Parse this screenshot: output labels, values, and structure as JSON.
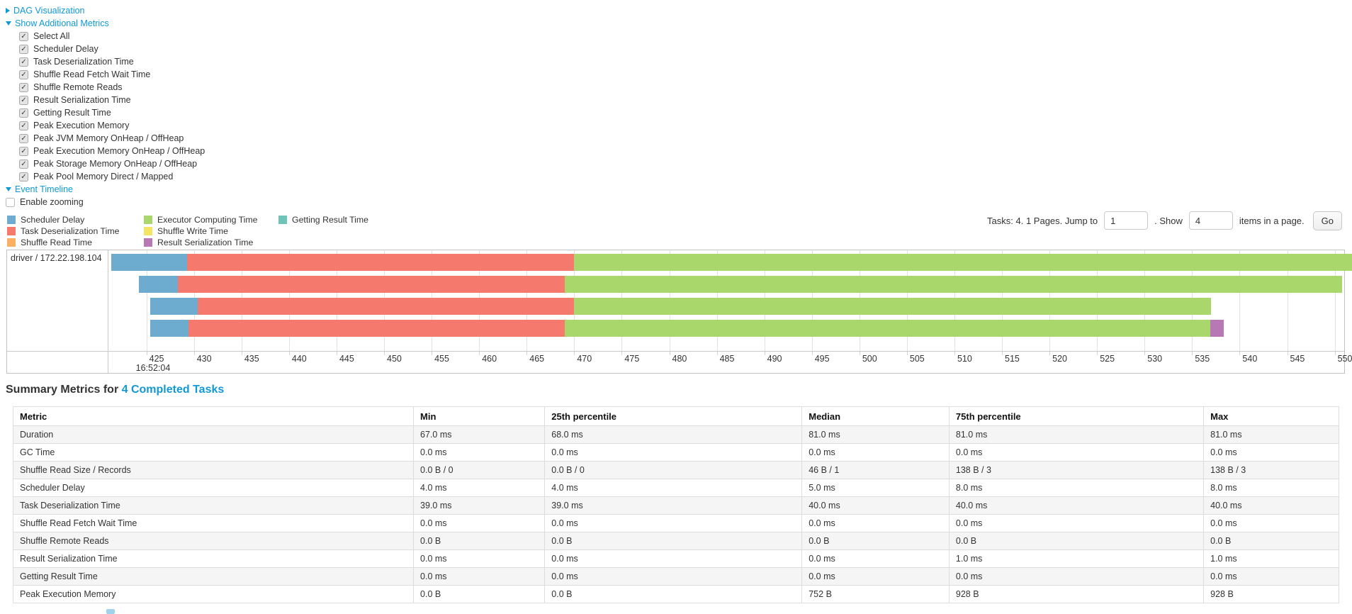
{
  "colors": {
    "link": "#1099D5",
    "scheduler_delay": "#6EACCF",
    "task_deserialization": "#F5796D",
    "shuffle_read": "#FAAF62",
    "executor_computing": "#A9D76B",
    "shuffle_write": "#F4E663",
    "result_serialization": "#B878B6",
    "getting_result": "#6EC4B7"
  },
  "toggles": {
    "dag": "DAG Visualization",
    "additional_metrics": "Show Additional Metrics",
    "event_timeline": "Event Timeline"
  },
  "additional_metrics": {
    "items": [
      "Select All",
      "Scheduler Delay",
      "Task Deserialization Time",
      "Shuffle Read Fetch Wait Time",
      "Shuffle Remote Reads",
      "Result Serialization Time",
      "Getting Result Time",
      "Peak Execution Memory",
      "Peak JVM Memory OnHeap / OffHeap",
      "Peak Execution Memory OnHeap / OffHeap",
      "Peak Storage Memory OnHeap / OffHeap",
      "Peak Pool Memory Direct / Mapped"
    ]
  },
  "enable_zooming_label": "Enable zooming",
  "legend": {
    "columns": [
      [
        {
          "label": "Scheduler Delay",
          "color_key": "scheduler_delay"
        },
        {
          "label": "Task Deserialization Time",
          "color_key": "task_deserialization"
        },
        {
          "label": "Shuffle Read Time",
          "color_key": "shuffle_read"
        }
      ],
      [
        {
          "label": "Executor Computing Time",
          "color_key": "executor_computing"
        },
        {
          "label": "Shuffle Write Time",
          "color_key": "shuffle_write"
        },
        {
          "label": "Result Serialization Time",
          "color_key": "result_serialization"
        }
      ],
      [
        {
          "label": "Getting Result Time",
          "color_key": "getting_result"
        }
      ]
    ]
  },
  "pagination": {
    "tasks_text": "Tasks: 4. 1 Pages. Jump to",
    "jump_value": "1",
    "show_text": ". Show",
    "show_value": "4",
    "items_text": "items in a page.",
    "go_label": "Go"
  },
  "chart_data": {
    "type": "timeline-bar",
    "group_label": "driver / 172.22.198.104",
    "axis": {
      "unit": "ms within 16:52:04",
      "min": 421,
      "max": 551,
      "tick_start": 425,
      "tick_end": 550,
      "tick_step": 5,
      "major_label": "16:52:04"
    },
    "tasks": [
      {
        "segments": [
          {
            "type": "scheduler_delay",
            "start": 421.3,
            "end": 429.3
          },
          {
            "type": "task_deserialization",
            "start": 429.3,
            "end": 470.0
          },
          {
            "type": "executor_computing",
            "start": 470.0,
            "end": 551.8
          }
        ]
      },
      {
        "segments": [
          {
            "type": "scheduler_delay",
            "start": 424.2,
            "end": 428.3
          },
          {
            "type": "task_deserialization",
            "start": 428.3,
            "end": 469.0
          },
          {
            "type": "executor_computing",
            "start": 469.0,
            "end": 550.8
          }
        ]
      },
      {
        "segments": [
          {
            "type": "scheduler_delay",
            "start": 425.4,
            "end": 430.4
          },
          {
            "type": "task_deserialization",
            "start": 430.4,
            "end": 470.0
          },
          {
            "type": "executor_computing",
            "start": 470.0,
            "end": 537.0
          }
        ]
      },
      {
        "segments": [
          {
            "type": "scheduler_delay",
            "start": 425.4,
            "end": 429.4
          },
          {
            "type": "task_deserialization",
            "start": 429.4,
            "end": 469.0
          },
          {
            "type": "executor_computing",
            "start": 469.0,
            "end": 536.9
          },
          {
            "type": "result_serialization",
            "start": 536.9,
            "end": 538.3
          }
        ]
      }
    ]
  },
  "summary": {
    "title_prefix": "Summary Metrics for",
    "title_link": "4 Completed Tasks",
    "table": {
      "headers": [
        "Metric",
        "Min",
        "25th percentile",
        "Median",
        "75th percentile",
        "Max"
      ],
      "col_widths_pct": [
        30.2,
        9.9,
        19.4,
        11.1,
        19.2,
        10.2
      ],
      "rows": [
        {
          "metric": "Duration",
          "values": [
            "67.0 ms",
            "68.0 ms",
            "81.0 ms",
            "81.0 ms",
            "81.0 ms"
          ]
        },
        {
          "metric": "GC Time",
          "values": [
            "0.0 ms",
            "0.0 ms",
            "0.0 ms",
            "0.0 ms",
            "0.0 ms"
          ]
        },
        {
          "metric": "Shuffle Read Size / Records",
          "values": [
            "0.0 B / 0",
            "0.0 B / 0",
            "46 B / 1",
            "138 B / 3",
            "138 B / 3"
          ]
        },
        {
          "metric": "Scheduler Delay",
          "values": [
            "4.0 ms",
            "4.0 ms",
            "5.0 ms",
            "8.0 ms",
            "8.0 ms"
          ]
        },
        {
          "metric": "Task Deserialization Time",
          "values": [
            "39.0 ms",
            "39.0 ms",
            "40.0 ms",
            "40.0 ms",
            "40.0 ms"
          ]
        },
        {
          "metric": "Shuffle Read Fetch Wait Time",
          "values": [
            "0.0 ms",
            "0.0 ms",
            "0.0 ms",
            "0.0 ms",
            "0.0 ms"
          ]
        },
        {
          "metric": "Shuffle Remote Reads",
          "values": [
            "0.0 B",
            "0.0 B",
            "0.0 B",
            "0.0 B",
            "0.0 B"
          ]
        },
        {
          "metric": "Result Serialization Time",
          "values": [
            "0.0 ms",
            "0.0 ms",
            "0.0 ms",
            "1.0 ms",
            "1.0 ms"
          ]
        },
        {
          "metric": "Getting Result Time",
          "values": [
            "0.0 ms",
            "0.0 ms",
            "0.0 ms",
            "0.0 ms",
            "0.0 ms"
          ]
        },
        {
          "metric": "Peak Execution Memory",
          "values": [
            "0.0 B",
            "0.0 B",
            "752 B",
            "928 B",
            "928 B"
          ]
        }
      ]
    }
  }
}
